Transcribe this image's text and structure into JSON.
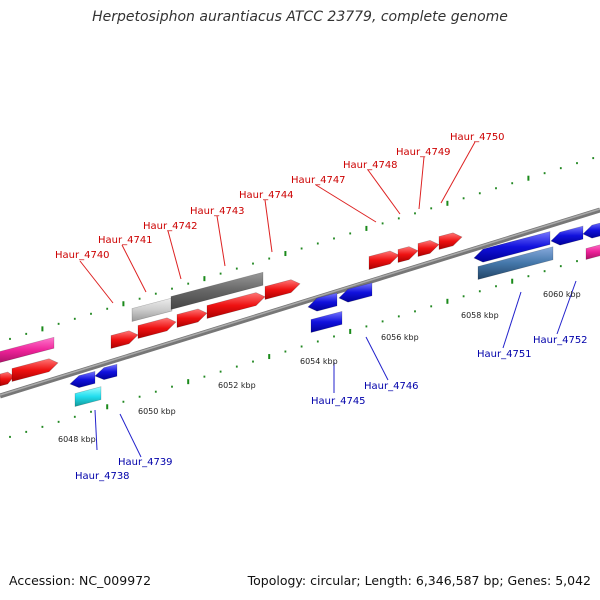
{
  "title": "Herpetosiphon aurantiacus ATCC 23779, complete genome",
  "footer": {
    "accession": "Accession: NC_009972",
    "topology": "Topology: circular; Length: 6,346,587 bp; Genes: 5,042"
  },
  "colors": {
    "forward_gene": "#ee1111",
    "reverse_gene": "#1111dd",
    "gray_dark": "#666666",
    "gray_light": "#cccccc",
    "magenta": "#ee2299",
    "cyan": "#22ddee",
    "steelblue": "#4477aa",
    "backbone": "#888888",
    "tick_major": "#1a8a1a",
    "tick_minor": "#228822",
    "top_label": "#cc0000",
    "bottom_label": "#0000aa"
  },
  "kbp_labels": [
    "6048 kbp",
    "6050 kbp",
    "6052 kbp",
    "6054 kbp",
    "6056 kbp",
    "6058 kbp",
    "6060 kbp"
  ],
  "top_genes": [
    "Haur_4740",
    "Haur_4741",
    "Haur_4742",
    "Haur_4743",
    "Haur_4744",
    "Haur_4747",
    "Haur_4748",
    "Haur_4749",
    "Haur_4750"
  ],
  "bottom_genes": [
    "Haur_4738",
    "Haur_4739",
    "Haur_4745",
    "Haur_4746",
    "Haur_4751",
    "Haur_4752"
  ]
}
